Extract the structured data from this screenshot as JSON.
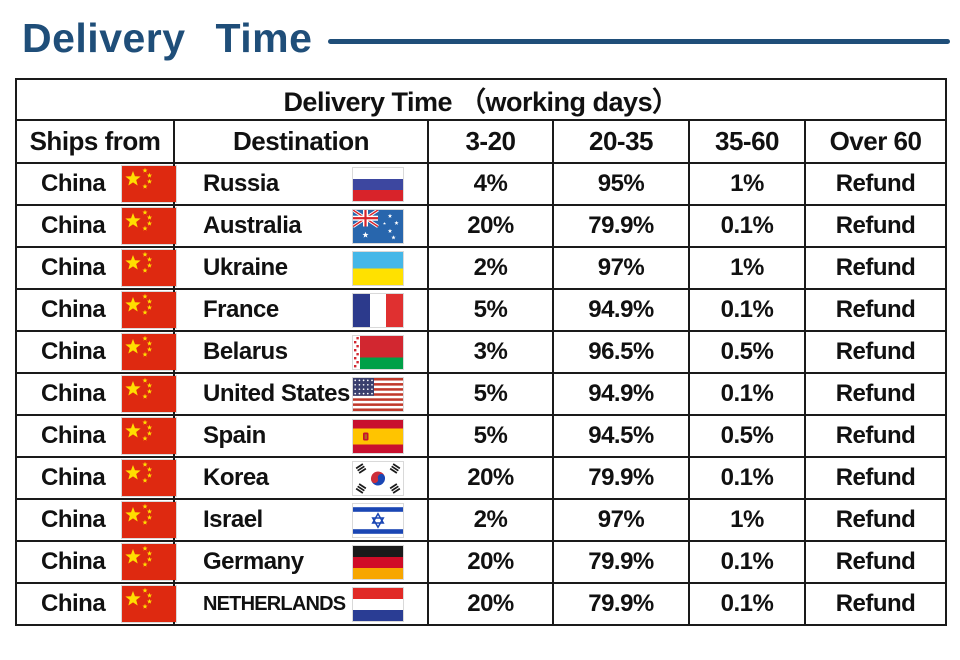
{
  "page": {
    "title": "Delivery Time",
    "accent_color": "#1F4E79"
  },
  "table": {
    "title": "Delivery Time （working days）",
    "columns": [
      "Ships from",
      "Destination",
      "3-20",
      "20-35",
      "35-60",
      "Over 60"
    ],
    "rows": [
      {
        "ships_from": "China",
        "origin_flag": "china",
        "destination": "Russia",
        "destination_flag": "russia",
        "values": [
          "4%",
          "95%",
          "1%",
          "Refund"
        ]
      },
      {
        "ships_from": "China",
        "origin_flag": "china",
        "destination": "Australia",
        "destination_flag": "australia",
        "values": [
          "20%",
          "79.9%",
          "0.1%",
          "Refund"
        ]
      },
      {
        "ships_from": "China",
        "origin_flag": "china",
        "destination": "Ukraine",
        "destination_flag": "ukraine",
        "values": [
          "2%",
          "97%",
          "1%",
          "Refund"
        ]
      },
      {
        "ships_from": "China",
        "origin_flag": "china",
        "destination": "France",
        "destination_flag": "france",
        "values": [
          "5%",
          "94.9%",
          "0.1%",
          "Refund"
        ]
      },
      {
        "ships_from": "China",
        "origin_flag": "china",
        "destination": "Belarus",
        "destination_flag": "belarus",
        "values": [
          "3%",
          "96.5%",
          "0.5%",
          "Refund"
        ]
      },
      {
        "ships_from": "China",
        "origin_flag": "china",
        "destination": "United States",
        "destination_flag": "usa",
        "values": [
          "5%",
          "94.9%",
          "0.1%",
          "Refund"
        ]
      },
      {
        "ships_from": "China",
        "origin_flag": "china",
        "destination": "Spain",
        "destination_flag": "spain",
        "values": [
          "5%",
          "94.5%",
          "0.5%",
          "Refund"
        ]
      },
      {
        "ships_from": "China",
        "origin_flag": "china",
        "destination": "Korea",
        "destination_flag": "korea",
        "values": [
          "20%",
          "79.9%",
          "0.1%",
          "Refund"
        ]
      },
      {
        "ships_from": "China",
        "origin_flag": "china",
        "destination": "Israel",
        "destination_flag": "israel",
        "values": [
          "2%",
          "97%",
          "1%",
          "Refund"
        ]
      },
      {
        "ships_from": "China",
        "origin_flag": "china",
        "destination": "Germany",
        "destination_flag": "germany",
        "values": [
          "20%",
          "79.9%",
          "0.1%",
          "Refund"
        ]
      },
      {
        "ships_from": "China",
        "origin_flag": "china",
        "destination": "NETHERLANDS",
        "destination_flag": "netherlands",
        "values": [
          "20%",
          "79.9%",
          "0.1%",
          "Refund"
        ]
      }
    ]
  }
}
